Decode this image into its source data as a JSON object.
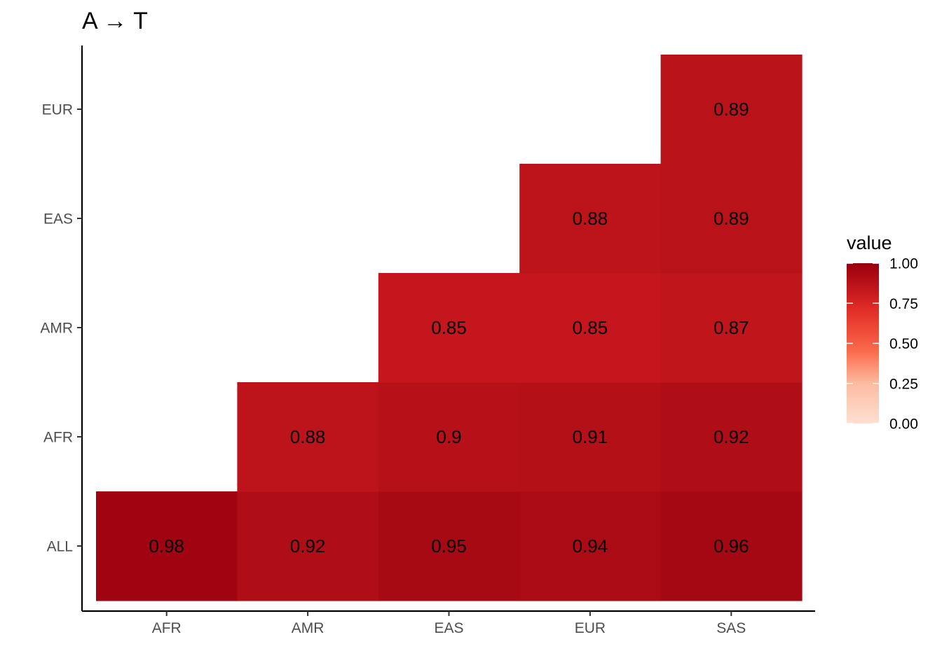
{
  "chart_data": {
    "type": "heatmap",
    "title": "A → T",
    "xlabel": "",
    "ylabel": "",
    "x_categories": [
      "AFR",
      "AMR",
      "EAS",
      "EUR",
      "SAS"
    ],
    "y_categories": [
      "ALL",
      "AFR",
      "AMR",
      "EAS",
      "EUR"
    ],
    "cells": [
      {
        "x": "AFR",
        "y": "ALL",
        "value": 0.98,
        "label": "0.98"
      },
      {
        "x": "AMR",
        "y": "ALL",
        "value": 0.92,
        "label": "0.92"
      },
      {
        "x": "EAS",
        "y": "ALL",
        "value": 0.95,
        "label": "0.95"
      },
      {
        "x": "EUR",
        "y": "ALL",
        "value": 0.94,
        "label": "0.94"
      },
      {
        "x": "SAS",
        "y": "ALL",
        "value": 0.96,
        "label": "0.96"
      },
      {
        "x": "AMR",
        "y": "AFR",
        "value": 0.88,
        "label": "0.88"
      },
      {
        "x": "EAS",
        "y": "AFR",
        "value": 0.9,
        "label": "0.9"
      },
      {
        "x": "EUR",
        "y": "AFR",
        "value": 0.91,
        "label": "0.91"
      },
      {
        "x": "SAS",
        "y": "AFR",
        "value": 0.92,
        "label": "0.92"
      },
      {
        "x": "EAS",
        "y": "AMR",
        "value": 0.85,
        "label": "0.85"
      },
      {
        "x": "EUR",
        "y": "AMR",
        "value": 0.85,
        "label": "0.85"
      },
      {
        "x": "SAS",
        "y": "AMR",
        "value": 0.87,
        "label": "0.87"
      },
      {
        "x": "EUR",
        "y": "EAS",
        "value": 0.88,
        "label": "0.88"
      },
      {
        "x": "SAS",
        "y": "EAS",
        "value": 0.89,
        "label": "0.89"
      },
      {
        "x": "SAS",
        "y": "EUR",
        "value": 0.89,
        "label": "0.89"
      }
    ],
    "legend": {
      "title": "value",
      "position": "right",
      "ticks": [
        {
          "value": 1.0,
          "label": "1.00"
        },
        {
          "value": 0.75,
          "label": "0.75"
        },
        {
          "value": 0.5,
          "label": "0.50"
        },
        {
          "value": 0.25,
          "label": "0.25"
        },
        {
          "value": 0.0,
          "label": "0.00"
        }
      ],
      "range": [
        0,
        1
      ],
      "color_low": "#fee0d2",
      "color_high": "#99000d"
    },
    "grid": false
  }
}
